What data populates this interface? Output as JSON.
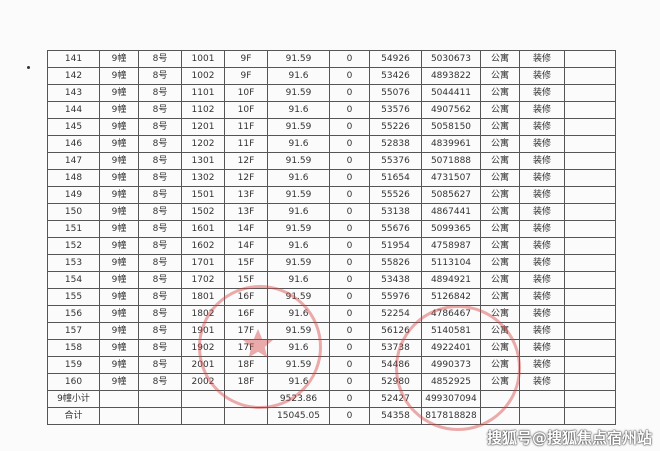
{
  "columns_count": 12,
  "rows": [
    [
      "141",
      "9幢",
      "8号",
      "1001",
      "9F",
      "91.59",
      "0",
      "54926",
      "5030673",
      "公寓",
      "装修",
      ""
    ],
    [
      "142",
      "9幢",
      "8号",
      "1002",
      "9F",
      "91.6",
      "0",
      "53426",
      "4893822",
      "公寓",
      "装修",
      ""
    ],
    [
      "143",
      "9幢",
      "8号",
      "1101",
      "10F",
      "91.59",
      "0",
      "55076",
      "5044411",
      "公寓",
      "装修",
      ""
    ],
    [
      "144",
      "9幢",
      "8号",
      "1102",
      "10F",
      "91.6",
      "0",
      "53576",
      "4907562",
      "公寓",
      "装修",
      ""
    ],
    [
      "145",
      "9幢",
      "8号",
      "1201",
      "11F",
      "91.59",
      "0",
      "55226",
      "5058150",
      "公寓",
      "装修",
      ""
    ],
    [
      "146",
      "9幢",
      "8号",
      "1202",
      "11F",
      "91.6",
      "0",
      "52838",
      "4839961",
      "公寓",
      "装修",
      ""
    ],
    [
      "147",
      "9幢",
      "8号",
      "1301",
      "12F",
      "91.59",
      "0",
      "55376",
      "5071888",
      "公寓",
      "装修",
      ""
    ],
    [
      "148",
      "9幢",
      "8号",
      "1302",
      "12F",
      "91.6",
      "0",
      "51654",
      "4731507",
      "公寓",
      "装修",
      ""
    ],
    [
      "149",
      "9幢",
      "8号",
      "1501",
      "13F",
      "91.59",
      "0",
      "55526",
      "5085627",
      "公寓",
      "装修",
      ""
    ],
    [
      "150",
      "9幢",
      "8号",
      "1502",
      "13F",
      "91.6",
      "0",
      "53138",
      "4867441",
      "公寓",
      "装修",
      ""
    ],
    [
      "151",
      "9幢",
      "8号",
      "1601",
      "14F",
      "91.59",
      "0",
      "55676",
      "5099365",
      "公寓",
      "装修",
      ""
    ],
    [
      "152",
      "9幢",
      "8号",
      "1602",
      "14F",
      "91.6",
      "0",
      "51954",
      "4758987",
      "公寓",
      "装修",
      ""
    ],
    [
      "153",
      "9幢",
      "8号",
      "1701",
      "15F",
      "91.59",
      "0",
      "55826",
      "5113104",
      "公寓",
      "装修",
      ""
    ],
    [
      "154",
      "9幢",
      "8号",
      "1702",
      "15F",
      "91.6",
      "0",
      "53438",
      "4894921",
      "公寓",
      "装修",
      ""
    ],
    [
      "155",
      "9幢",
      "8号",
      "1801",
      "16F",
      "91.59",
      "0",
      "55976",
      "5126842",
      "公寓",
      "装修",
      ""
    ],
    [
      "156",
      "9幢",
      "8号",
      "1802",
      "16F",
      "91.6",
      "0",
      "52254",
      "4786467",
      "公寓",
      "装修",
      ""
    ],
    [
      "157",
      "9幢",
      "8号",
      "1901",
      "17F",
      "91.59",
      "0",
      "56126",
      "5140581",
      "公寓",
      "装修",
      ""
    ],
    [
      "158",
      "9幢",
      "8号",
      "1902",
      "17F",
      "91.6",
      "0",
      "53738",
      "4922401",
      "公寓",
      "装修",
      ""
    ],
    [
      "159",
      "9幢",
      "8号",
      "2001",
      "18F",
      "91.59",
      "0",
      "54486",
      "4990373",
      "公寓",
      "装修",
      ""
    ],
    [
      "160",
      "9幢",
      "8号",
      "2002",
      "18F",
      "91.6",
      "0",
      "52980",
      "4852925",
      "公寓",
      "装修",
      ""
    ],
    [
      "9幢小计",
      "",
      "",
      "",
      "",
      "9523.86",
      "0",
      "52427",
      "499307094",
      "",
      "",
      ""
    ],
    [
      "合计",
      "",
      "",
      "",
      "",
      "15045.05",
      "0",
      "54358",
      "817818828",
      "",
      "",
      ""
    ]
  ],
  "watermark": "搜狐号@搜狐焦点宿州站",
  "stamp_color": "#d74646"
}
